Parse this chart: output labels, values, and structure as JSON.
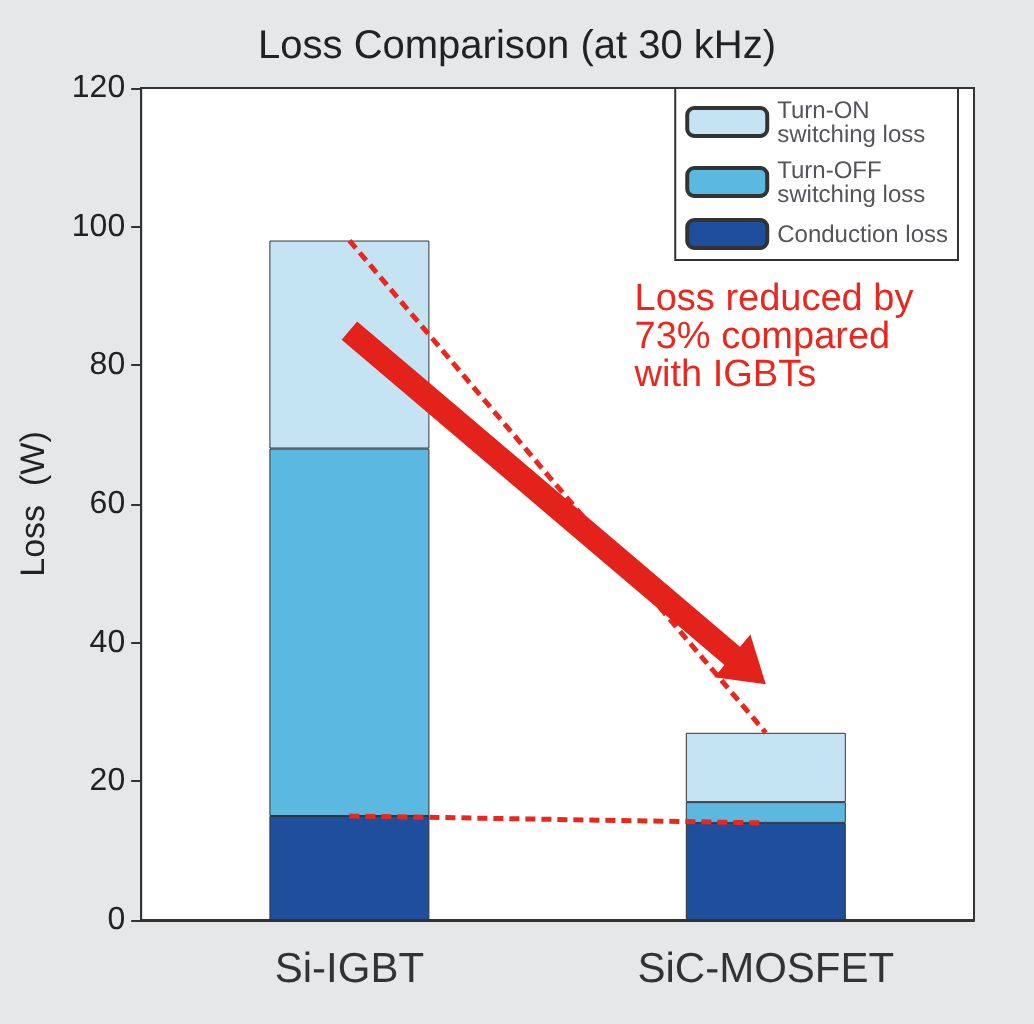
{
  "chart_data": {
    "type": "bar",
    "title": "Loss Comparison (at 30 kHz)",
    "ylabel": "Loss  (W)",
    "categories": [
      "Si-IGBT",
      "SiC-MOSFET"
    ],
    "stacked": true,
    "legend": "top right",
    "grid": false,
    "ylim": [
      0,
      120
    ],
    "yticks": [
      0,
      20,
      40,
      60,
      80,
      100,
      120
    ],
    "series": [
      {
        "name": "Conduction loss",
        "color": "#1f4e9c",
        "values": [
          15,
          14
        ]
      },
      {
        "name": "Turn-OFF switching loss",
        "color": "#5bb8e0",
        "values": [
          53,
          3
        ]
      },
      {
        "name": "Turn-ON switching loss",
        "color": "#c5e4f3",
        "values": [
          30,
          10
        ]
      },
      {
        "type": "line",
        "line_style": "dashed",
        "marker": "none",
        "color": "#e8281e",
        "values": [
          98,
          27
        ]
      },
      {
        "type": "line",
        "line_style": "dashed",
        "marker": "none",
        "color": "#e8281e",
        "values": [
          15,
          14
        ]
      }
    ],
    "annotations": [
      "Loss reduced by 73% compared with IGBTs"
    ]
  }
}
